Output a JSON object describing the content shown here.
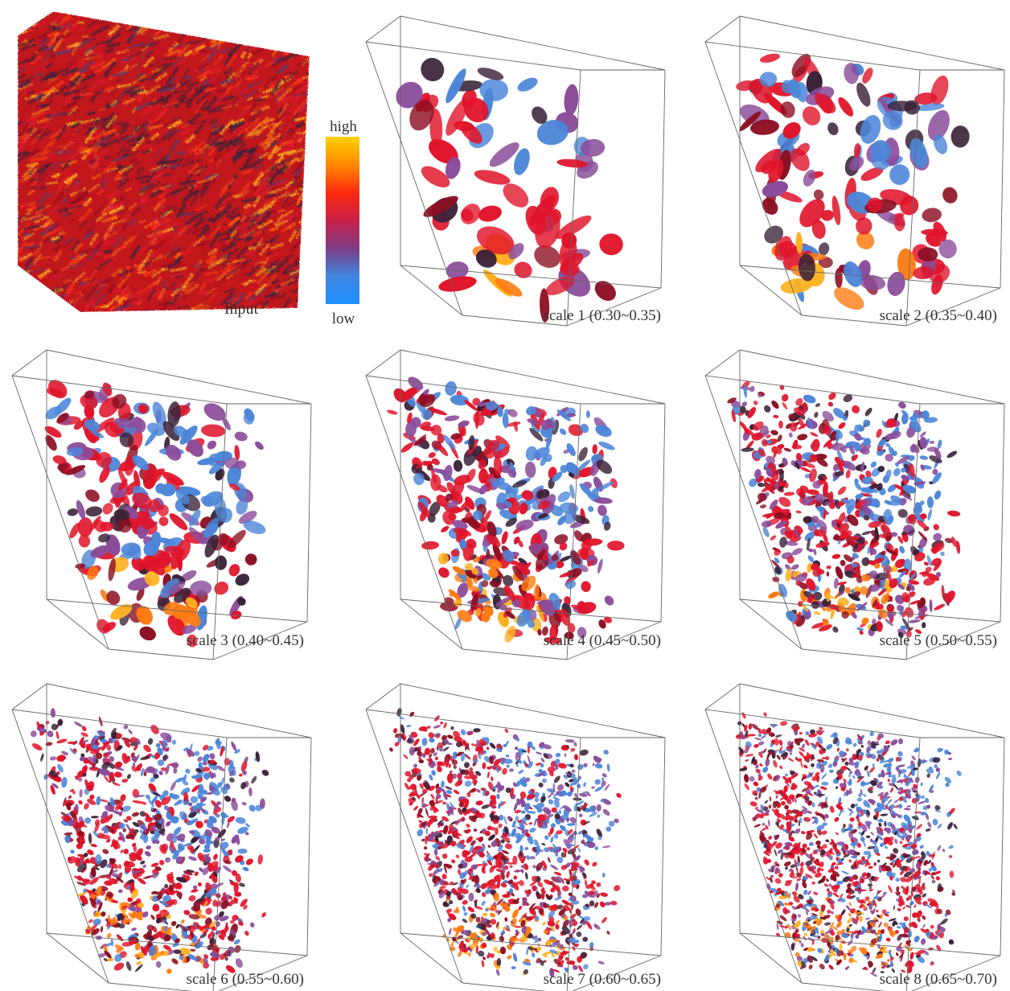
{
  "figure": {
    "input_label": "Input",
    "colorbar": {
      "high_label": "high",
      "low_label": "low",
      "gradient_stops": [
        "#ffd000",
        "#ff8a00",
        "#ff2a10",
        "#c8204a",
        "#7e3c86",
        "#3f86e0",
        "#1e90ff"
      ]
    },
    "palette": {
      "red": "#e0142a",
      "dark_red": "#8c0f22",
      "orange": "#ff7a10",
      "purple": "#8a4c9a",
      "blue": "#4c86d8",
      "dark": "#3a2238",
      "frame": "#666666"
    },
    "panels": [
      {
        "label": "scale 1 (0.30~0.35)",
        "blob_count": 70,
        "blob_size": 16
      },
      {
        "label": "scale 2 (0.35~0.40)",
        "blob_count": 130,
        "blob_size": 13
      },
      {
        "label": "scale 3 (0.40~0.45)",
        "blob_count": 260,
        "blob_size": 10
      },
      {
        "label": "scale 4 (0.45~0.50)",
        "blob_count": 450,
        "blob_size": 7.5
      },
      {
        "label": "scale 5 (0.50~0.55)",
        "blob_count": 700,
        "blob_size": 5.5
      },
      {
        "label": "scale 6 (0.55~0.60)",
        "blob_count": 950,
        "blob_size": 4.5
      },
      {
        "label": "scale 7 (0.60~0.65)",
        "blob_count": 1200,
        "blob_size": 3.8
      },
      {
        "label": "scale 8 (0.65~0.70)",
        "blob_count": 1400,
        "blob_size": 3.4
      }
    ]
  }
}
